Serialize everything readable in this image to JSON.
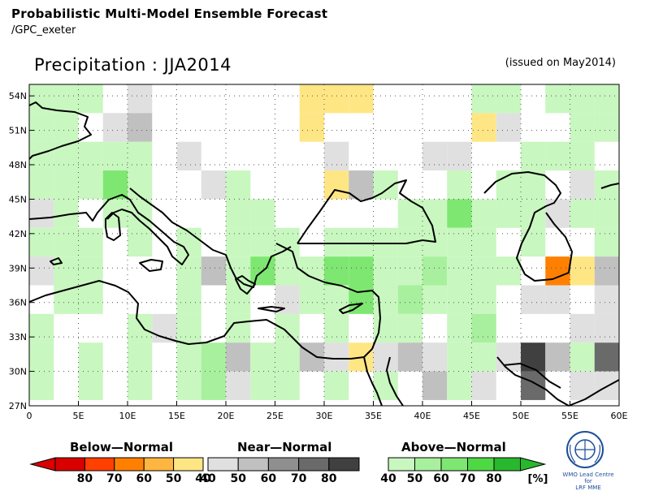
{
  "header": {
    "title": "Probabilistic Multi-Model Ensemble Forecast",
    "subtitle": "/GPC_exeter",
    "variable": "Precipitation : JJA2014",
    "issued": "(issued on May2014)"
  },
  "map": {
    "lon_min": 0,
    "lon_max": 60,
    "lat_min": 27,
    "lat_max": 55,
    "cell_deg": 2.5,
    "x_ticks": [
      "0",
      "5E",
      "10E",
      "15E",
      "20E",
      "25E",
      "30E",
      "35E",
      "40E",
      "45E",
      "50E",
      "55E",
      "60E"
    ],
    "y_ticks": [
      "54N",
      "51N",
      "48N",
      "45N",
      "42N",
      "39N",
      "36N",
      "33N",
      "30N",
      "27N"
    ],
    "grid": true
  },
  "legend": {
    "below": {
      "title": "Below—Normal",
      "labels": [
        "80",
        "70",
        "60",
        "50",
        "40"
      ],
      "colors": [
        "#d90000",
        "#ff4000",
        "#ff8000",
        "#ffb640",
        "#ffe685"
      ]
    },
    "near": {
      "title": "Near—Normal",
      "labels": [
        "40",
        "50",
        "60",
        "70",
        "80"
      ],
      "colors": [
        "#e0e0e0",
        "#c0c0c0",
        "#8f8f8f",
        "#6a6a6a",
        "#404040"
      ]
    },
    "above": {
      "title": "Above—Normal",
      "labels": [
        "40",
        "50",
        "60",
        "70",
        "80"
      ],
      "colors": [
        "#c8f7bf",
        "#a8f09e",
        "#7ee771",
        "#4ed944",
        "#28b82d"
      ],
      "unit": "[%]"
    }
  },
  "logo": {
    "line1": "WMO Lead Centre for",
    "line2": "LRF MME"
  },
  "chart_data": {
    "type": "heatmap",
    "title": "Precipitation : JJA2014",
    "categories_legend": [
      "Below-Normal",
      "Near-Normal",
      "Above-Normal"
    ],
    "cells": [
      {
        "lon": 0,
        "lat": 52.5,
        "cat": "above",
        "p": 40
      },
      {
        "lon": 2.5,
        "lat": 52.5,
        "cat": "above",
        "p": 40
      },
      {
        "lon": 5,
        "lat": 52.5,
        "cat": "above",
        "p": 40
      },
      {
        "lon": 10,
        "lat": 52.5,
        "cat": "near",
        "p": 40
      },
      {
        "lon": 27.5,
        "lat": 52.5,
        "cat": "below",
        "p": 40
      },
      {
        "lon": 30,
        "lat": 52.5,
        "cat": "below",
        "p": 40
      },
      {
        "lon": 32.5,
        "lat": 52.5,
        "cat": "below",
        "p": 40
      },
      {
        "lon": 45,
        "lat": 52.5,
        "cat": "above",
        "p": 40
      },
      {
        "lon": 47.5,
        "lat": 52.5,
        "cat": "above",
        "p": 40
      },
      {
        "lon": 52.5,
        "lat": 52.5,
        "cat": "above",
        "p": 40
      },
      {
        "lon": 55,
        "lat": 52.5,
        "cat": "above",
        "p": 40
      },
      {
        "lon": 57.5,
        "lat": 52.5,
        "cat": "above",
        "p": 40
      },
      {
        "lon": 0,
        "lat": 50,
        "cat": "above",
        "p": 40
      },
      {
        "lon": 2.5,
        "lat": 50,
        "cat": "above",
        "p": 40
      },
      {
        "lon": 7.5,
        "lat": 50,
        "cat": "near",
        "p": 40
      },
      {
        "lon": 10,
        "lat": 50,
        "cat": "near",
        "p": 50
      },
      {
        "lon": 27.5,
        "lat": 50,
        "cat": "below",
        "p": 40
      },
      {
        "lon": 45,
        "lat": 50,
        "cat": "below",
        "p": 40
      },
      {
        "lon": 47.5,
        "lat": 50,
        "cat": "near",
        "p": 40
      },
      {
        "lon": 55,
        "lat": 50,
        "cat": "above",
        "p": 40
      },
      {
        "lon": 57.5,
        "lat": 50,
        "cat": "above",
        "p": 40
      },
      {
        "lon": 0,
        "lat": 47.5,
        "cat": "above",
        "p": 40
      },
      {
        "lon": 2.5,
        "lat": 47.5,
        "cat": "above",
        "p": 40
      },
      {
        "lon": 5,
        "lat": 47.5,
        "cat": "above",
        "p": 40
      },
      {
        "lon": 7.5,
        "lat": 47.5,
        "cat": "above",
        "p": 40
      },
      {
        "lon": 10,
        "lat": 47.5,
        "cat": "above",
        "p": 40
      },
      {
        "lon": 15,
        "lat": 47.5,
        "cat": "near",
        "p": 40
      },
      {
        "lon": 30,
        "lat": 47.5,
        "cat": "near",
        "p": 40
      },
      {
        "lon": 40,
        "lat": 47.5,
        "cat": "near",
        "p": 40
      },
      {
        "lon": 42.5,
        "lat": 47.5,
        "cat": "near",
        "p": 40
      },
      {
        "lon": 50,
        "lat": 47.5,
        "cat": "above",
        "p": 40
      },
      {
        "lon": 52.5,
        "lat": 47.5,
        "cat": "above",
        "p": 40
      },
      {
        "lon": 55,
        "lat": 47.5,
        "cat": "above",
        "p": 40
      },
      {
        "lon": 0,
        "lat": 45,
        "cat": "above",
        "p": 40
      },
      {
        "lon": 2.5,
        "lat": 45,
        "cat": "above",
        "p": 40
      },
      {
        "lon": 5,
        "lat": 45,
        "cat": "above",
        "p": 40
      },
      {
        "lon": 7.5,
        "lat": 45,
        "cat": "above",
        "p": 60
      },
      {
        "lon": 10,
        "lat": 45,
        "cat": "above",
        "p": 40
      },
      {
        "lon": 17.5,
        "lat": 45,
        "cat": "near",
        "p": 40
      },
      {
        "lon": 20,
        "lat": 45,
        "cat": "above",
        "p": 40
      },
      {
        "lon": 30,
        "lat": 45,
        "cat": "below",
        "p": 40
      },
      {
        "lon": 32.5,
        "lat": 45,
        "cat": "near",
        "p": 50
      },
      {
        "lon": 35,
        "lat": 45,
        "cat": "above",
        "p": 40
      },
      {
        "lon": 42.5,
        "lat": 45,
        "cat": "above",
        "p": 40
      },
      {
        "lon": 47.5,
        "lat": 45,
        "cat": "above",
        "p": 40
      },
      {
        "lon": 50,
        "lat": 45,
        "cat": "above",
        "p": 40
      },
      {
        "lon": 55,
        "lat": 45,
        "cat": "near",
        "p": 40
      },
      {
        "lon": 57.5,
        "lat": 45,
        "cat": "above",
        "p": 40
      },
      {
        "lon": 0,
        "lat": 42.5,
        "cat": "near",
        "p": 40
      },
      {
        "lon": 2.5,
        "lat": 42.5,
        "cat": "above",
        "p": 40
      },
      {
        "lon": 7.5,
        "lat": 42.5,
        "cat": "above",
        "p": 40
      },
      {
        "lon": 10,
        "lat": 42.5,
        "cat": "above",
        "p": 40
      },
      {
        "lon": 20,
        "lat": 42.5,
        "cat": "above",
        "p": 40
      },
      {
        "lon": 22.5,
        "lat": 42.5,
        "cat": "above",
        "p": 40
      },
      {
        "lon": 37.5,
        "lat": 42.5,
        "cat": "above",
        "p": 40
      },
      {
        "lon": 40,
        "lat": 42.5,
        "cat": "above",
        "p": 40
      },
      {
        "lon": 42.5,
        "lat": 42.5,
        "cat": "above",
        "p": 60
      },
      {
        "lon": 45,
        "lat": 42.5,
        "cat": "above",
        "p": 40
      },
      {
        "lon": 47.5,
        "lat": 42.5,
        "cat": "above",
        "p": 40
      },
      {
        "lon": 50,
        "lat": 42.5,
        "cat": "above",
        "p": 40
      },
      {
        "lon": 52.5,
        "lat": 42.5,
        "cat": "near",
        "p": 40
      },
      {
        "lon": 55,
        "lat": 42.5,
        "cat": "above",
        "p": 40
      },
      {
        "lon": 57.5,
        "lat": 42.5,
        "cat": "above",
        "p": 40
      },
      {
        "lon": 0,
        "lat": 40,
        "cat": "above",
        "p": 40
      },
      {
        "lon": 2.5,
        "lat": 40,
        "cat": "above",
        "p": 40
      },
      {
        "lon": 5,
        "lat": 40,
        "cat": "above",
        "p": 40
      },
      {
        "lon": 10,
        "lat": 40,
        "cat": "above",
        "p": 40
      },
      {
        "lon": 15,
        "lat": 40,
        "cat": "above",
        "p": 40
      },
      {
        "lon": 20,
        "lat": 40,
        "cat": "above",
        "p": 40
      },
      {
        "lon": 22.5,
        "lat": 40,
        "cat": "above",
        "p": 40
      },
      {
        "lon": 25,
        "lat": 40,
        "cat": "above",
        "p": 40
      },
      {
        "lon": 30,
        "lat": 40,
        "cat": "above",
        "p": 40
      },
      {
        "lon": 32.5,
        "lat": 40,
        "cat": "above",
        "p": 40
      },
      {
        "lon": 35,
        "lat": 40,
        "cat": "above",
        "p": 40
      },
      {
        "lon": 37.5,
        "lat": 40,
        "cat": "above",
        "p": 40
      },
      {
        "lon": 40,
        "lat": 40,
        "cat": "above",
        "p": 40
      },
      {
        "lon": 42.5,
        "lat": 40,
        "cat": "above",
        "p": 40
      },
      {
        "lon": 45,
        "lat": 40,
        "cat": "above",
        "p": 40
      },
      {
        "lon": 50,
        "lat": 40,
        "cat": "above",
        "p": 40
      },
      {
        "lon": 57.5,
        "lat": 40,
        "cat": "above",
        "p": 40
      },
      {
        "lon": 0,
        "lat": 37.5,
        "cat": "near",
        "p": 40
      },
      {
        "lon": 2.5,
        "lat": 37.5,
        "cat": "above",
        "p": 40
      },
      {
        "lon": 5,
        "lat": 37.5,
        "cat": "above",
        "p": 40
      },
      {
        "lon": 15,
        "lat": 37.5,
        "cat": "above",
        "p": 40
      },
      {
        "lon": 17.5,
        "lat": 37.5,
        "cat": "near",
        "p": 50
      },
      {
        "lon": 20,
        "lat": 37.5,
        "cat": "above",
        "p": 40
      },
      {
        "lon": 22.5,
        "lat": 37.5,
        "cat": "above",
        "p": 60
      },
      {
        "lon": 25,
        "lat": 37.5,
        "cat": "above",
        "p": 40
      },
      {
        "lon": 27.5,
        "lat": 37.5,
        "cat": "above",
        "p": 40
      },
      {
        "lon": 30,
        "lat": 37.5,
        "cat": "above",
        "p": 60
      },
      {
        "lon": 32.5,
        "lat": 37.5,
        "cat": "above",
        "p": 60
      },
      {
        "lon": 35,
        "lat": 37.5,
        "cat": "above",
        "p": 40
      },
      {
        "lon": 37.5,
        "lat": 37.5,
        "cat": "above",
        "p": 40
      },
      {
        "lon": 40,
        "lat": 37.5,
        "cat": "above",
        "p": 50
      },
      {
        "lon": 42.5,
        "lat": 37.5,
        "cat": "above",
        "p": 40
      },
      {
        "lon": 45,
        "lat": 37.5,
        "cat": "above",
        "p": 40
      },
      {
        "lon": 47.5,
        "lat": 37.5,
        "cat": "above",
        "p": 40
      },
      {
        "lon": 52.5,
        "lat": 37.5,
        "cat": "below",
        "p": 60
      },
      {
        "lon": 55,
        "lat": 37.5,
        "cat": "below",
        "p": 40
      },
      {
        "lon": 57.5,
        "lat": 37.5,
        "cat": "near",
        "p": 50
      },
      {
        "lon": 2.5,
        "lat": 35,
        "cat": "above",
        "p": 40
      },
      {
        "lon": 5,
        "lat": 35,
        "cat": "above",
        "p": 40
      },
      {
        "lon": 15,
        "lat": 35,
        "cat": "above",
        "p": 40
      },
      {
        "lon": 20,
        "lat": 35,
        "cat": "above",
        "p": 40
      },
      {
        "lon": 25,
        "lat": 35,
        "cat": "near",
        "p": 40
      },
      {
        "lon": 27.5,
        "lat": 35,
        "cat": "above",
        "p": 40
      },
      {
        "lon": 30,
        "lat": 35,
        "cat": "above",
        "p": 40
      },
      {
        "lon": 32.5,
        "lat": 35,
        "cat": "above",
        "p": 60
      },
      {
        "lon": 35,
        "lat": 35,
        "cat": "above",
        "p": 40
      },
      {
        "lon": 37.5,
        "lat": 35,
        "cat": "above",
        "p": 50
      },
      {
        "lon": 40,
        "lat": 35,
        "cat": "above",
        "p": 40
      },
      {
        "lon": 42.5,
        "lat": 35,
        "cat": "above",
        "p": 40
      },
      {
        "lon": 45,
        "lat": 35,
        "cat": "above",
        "p": 40
      },
      {
        "lon": 50,
        "lat": 35,
        "cat": "near",
        "p": 40
      },
      {
        "lon": 52.5,
        "lat": 35,
        "cat": "near",
        "p": 40
      },
      {
        "lon": 57.5,
        "lat": 35,
        "cat": "near",
        "p": 40
      },
      {
        "lon": 0,
        "lat": 32.5,
        "cat": "above",
        "p": 40
      },
      {
        "lon": 10,
        "lat": 32.5,
        "cat": "above",
        "p": 40
      },
      {
        "lon": 12.5,
        "lat": 32.5,
        "cat": "near",
        "p": 40
      },
      {
        "lon": 15,
        "lat": 32.5,
        "cat": "above",
        "p": 40
      },
      {
        "lon": 20,
        "lat": 32.5,
        "cat": "above",
        "p": 40
      },
      {
        "lon": 25,
        "lat": 32.5,
        "cat": "above",
        "p": 40
      },
      {
        "lon": 30,
        "lat": 32.5,
        "cat": "above",
        "p": 40
      },
      {
        "lon": 35,
        "lat": 32.5,
        "cat": "above",
        "p": 40
      },
      {
        "lon": 37.5,
        "lat": 32.5,
        "cat": "above",
        "p": 40
      },
      {
        "lon": 42.5,
        "lat": 32.5,
        "cat": "above",
        "p": 40
      },
      {
        "lon": 45,
        "lat": 32.5,
        "cat": "above",
        "p": 50
      },
      {
        "lon": 55,
        "lat": 32.5,
        "cat": "near",
        "p": 40
      },
      {
        "lon": 57.5,
        "lat": 32.5,
        "cat": "near",
        "p": 40
      },
      {
        "lon": 0,
        "lat": 30,
        "cat": "above",
        "p": 40
      },
      {
        "lon": 5,
        "lat": 30,
        "cat": "above",
        "p": 40
      },
      {
        "lon": 10,
        "lat": 30,
        "cat": "above",
        "p": 40
      },
      {
        "lon": 15,
        "lat": 30,
        "cat": "above",
        "p": 40
      },
      {
        "lon": 17.5,
        "lat": 30,
        "cat": "above",
        "p": 50
      },
      {
        "lon": 20,
        "lat": 30,
        "cat": "near",
        "p": 50
      },
      {
        "lon": 22.5,
        "lat": 30,
        "cat": "above",
        "p": 40
      },
      {
        "lon": 25,
        "lat": 30,
        "cat": "above",
        "p": 40
      },
      {
        "lon": 27.5,
        "lat": 30,
        "cat": "near",
        "p": 50
      },
      {
        "lon": 30,
        "lat": 30,
        "cat": "near",
        "p": 40
      },
      {
        "lon": 32.5,
        "lat": 30,
        "cat": "below",
        "p": 40
      },
      {
        "lon": 35,
        "lat": 30,
        "cat": "near",
        "p": 40
      },
      {
        "lon": 37.5,
        "lat": 30,
        "cat": "near",
        "p": 50
      },
      {
        "lon": 40,
        "lat": 30,
        "cat": "near",
        "p": 40
      },
      {
        "lon": 42.5,
        "lat": 30,
        "cat": "above",
        "p": 40
      },
      {
        "lon": 45,
        "lat": 30,
        "cat": "above",
        "p": 40
      },
      {
        "lon": 47.5,
        "lat": 30,
        "cat": "near",
        "p": 40
      },
      {
        "lon": 50,
        "lat": 30,
        "cat": "near",
        "p": 80
      },
      {
        "lon": 52.5,
        "lat": 30,
        "cat": "near",
        "p": 50
      },
      {
        "lon": 55,
        "lat": 30,
        "cat": "above",
        "p": 40
      },
      {
        "lon": 57.5,
        "lat": 30,
        "cat": "near",
        "p": 70
      },
      {
        "lon": 0,
        "lat": 27.5,
        "cat": "above",
        "p": 40
      },
      {
        "lon": 5,
        "lat": 27.5,
        "cat": "above",
        "p": 40
      },
      {
        "lon": 10,
        "lat": 27.5,
        "cat": "above",
        "p": 40
      },
      {
        "lon": 15,
        "lat": 27.5,
        "cat": "above",
        "p": 40
      },
      {
        "lon": 17.5,
        "lat": 27.5,
        "cat": "above",
        "p": 50
      },
      {
        "lon": 20,
        "lat": 27.5,
        "cat": "near",
        "p": 40
      },
      {
        "lon": 22.5,
        "lat": 27.5,
        "cat": "above",
        "p": 40
      },
      {
        "lon": 25,
        "lat": 27.5,
        "cat": "above",
        "p": 40
      },
      {
        "lon": 30,
        "lat": 27.5,
        "cat": "above",
        "p": 40
      },
      {
        "lon": 35,
        "lat": 27.5,
        "cat": "above",
        "p": 40
      },
      {
        "lon": 40,
        "lat": 27.5,
        "cat": "near",
        "p": 50
      },
      {
        "lon": 42.5,
        "lat": 27.5,
        "cat": "above",
        "p": 40
      },
      {
        "lon": 45,
        "lat": 27.5,
        "cat": "near",
        "p": 40
      },
      {
        "lon": 50,
        "lat": 27.5,
        "cat": "near",
        "p": 70
      },
      {
        "lon": 55,
        "lat": 27.5,
        "cat": "near",
        "p": 40
      },
      {
        "lon": 57.5,
        "lat": 27.5,
        "cat": "near",
        "p": 40
      }
    ]
  }
}
